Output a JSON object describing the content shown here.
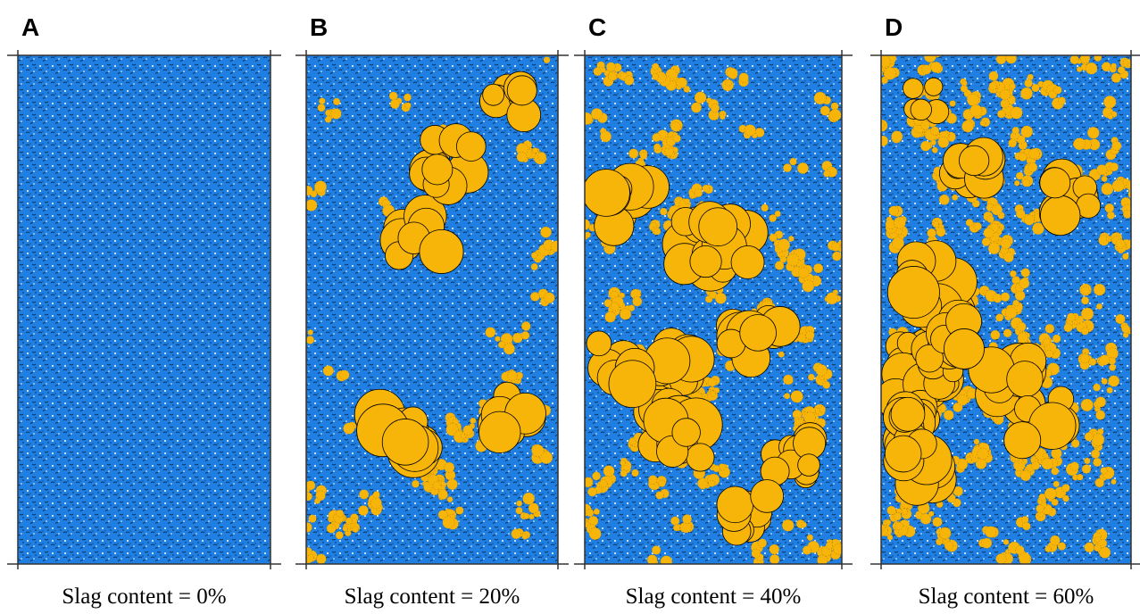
{
  "panels": [
    {
      "label": "A",
      "caption": "Slag content = 0%"
    },
    {
      "label": "B",
      "caption": "Slag content = 20%"
    },
    {
      "label": "C",
      "caption": "Slag content = 40%"
    },
    {
      "label": "D",
      "caption": "Slag content = 60%"
    }
  ]
}
